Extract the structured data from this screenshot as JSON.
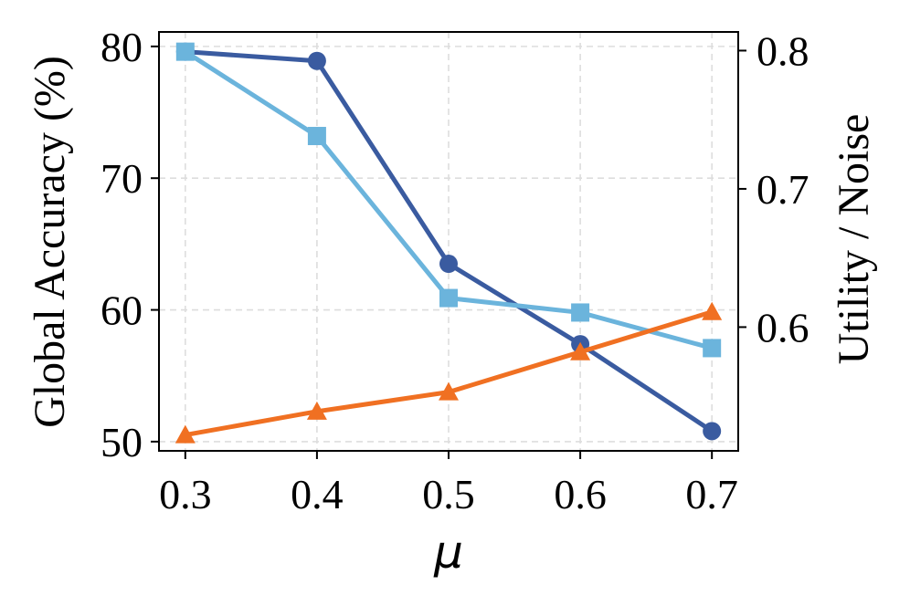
{
  "chart_data": {
    "type": "line",
    "x": [
      0.3,
      0.4,
      0.5,
      0.6,
      0.7
    ],
    "x_tick_labels": [
      "0.3",
      "0.4",
      "0.5",
      "0.6",
      "0.7"
    ],
    "xlabel": "μ",
    "xlim": [
      0.28,
      0.72
    ],
    "left_axis": {
      "ylabel": "Global Accuracy (%)",
      "ylim": [
        49.3,
        81.1
      ],
      "ticks": [
        50,
        60,
        70,
        80
      ],
      "tick_labels": [
        "50",
        "60",
        "70",
        "80"
      ]
    },
    "right_axis": {
      "ylabel": "Utility / Noise",
      "ylim": [
        0.5105,
        0.8135
      ],
      "ticks": [
        0.6,
        0.7,
        0.8
      ],
      "tick_labels": [
        "0.6",
        "0.7",
        "0.8"
      ]
    },
    "grid": true,
    "series": [
      {
        "axis": "left",
        "marker": "circle",
        "color": "#3a5ba0",
        "values": [
          79.6,
          78.9,
          63.5,
          57.4,
          50.8
        ]
      },
      {
        "axis": "left",
        "marker": "square",
        "color": "#6bb4dc",
        "values": [
          79.6,
          73.2,
          60.9,
          59.8,
          57.1
        ]
      },
      {
        "axis": "right",
        "marker": "triangle",
        "color": "#f07022",
        "values": [
          0.522,
          0.539,
          0.553,
          0.582,
          0.611
        ]
      }
    ]
  }
}
